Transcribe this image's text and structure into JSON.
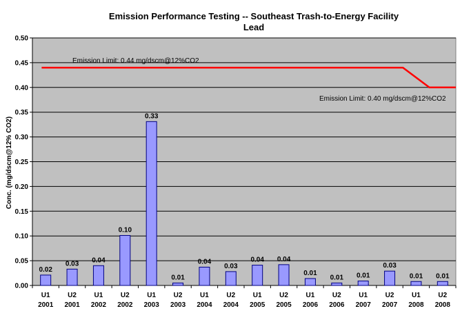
{
  "chart_data": {
    "type": "bar",
    "title": "Emission Performance Testing -- Southeast Trash-to-Energy Facility",
    "subtitle": "Lead",
    "xlabel": "",
    "ylabel": "Conc. (mg/dscm@12% CO2)",
    "ylim": [
      0,
      0.5
    ],
    "yticks": [
      "0.00",
      "0.05",
      "0.10",
      "0.15",
      "0.20",
      "0.25",
      "0.30",
      "0.35",
      "0.40",
      "0.45",
      "0.50"
    ],
    "grid": true,
    "categories": [
      [
        "U1",
        "2001"
      ],
      [
        "U2",
        "2001"
      ],
      [
        "U1",
        "2002"
      ],
      [
        "U2",
        "2002"
      ],
      [
        "U1",
        "2003"
      ],
      [
        "U2",
        "2003"
      ],
      [
        "U1",
        "2004"
      ],
      [
        "U2",
        "2004"
      ],
      [
        "U1",
        "2005"
      ],
      [
        "U2",
        "2005"
      ],
      [
        "U1",
        "2006"
      ],
      [
        "U2",
        "2006"
      ],
      [
        "U1",
        "2007"
      ],
      [
        "U2",
        "2007"
      ],
      [
        "U1",
        "2008"
      ],
      [
        "U2",
        "2008"
      ]
    ],
    "values": [
      0.021,
      0.033,
      0.04,
      0.101,
      0.331,
      0.005,
      0.037,
      0.028,
      0.041,
      0.042,
      0.014,
      0.005,
      0.009,
      0.029,
      0.008,
      0.008
    ],
    "data_labels": [
      "0.02",
      "0.03",
      "0.04",
      "0.10",
      "0.33",
      "0.01",
      "0.04",
      "0.03",
      "0.04",
      "0.04",
      "0.01",
      "0.01",
      "0.01",
      "0.03",
      "0.01",
      "0.01"
    ],
    "limit_line": {
      "points": [
        [
          0,
          0.44
        ],
        [
          13.5,
          0.44
        ],
        [
          14.5,
          0.4
        ],
        [
          15.5,
          0.4
        ]
      ]
    },
    "annotations": [
      {
        "text": "Emission Limit: 0.44 mg/dscm@12%CO2"
      },
      {
        "text": "Emission Limit: 0.40 mg/dscm@12%CO2"
      }
    ],
    "colors": {
      "plot_bg": "#c0c0c0",
      "bar_fill": "#9999ff",
      "bar_stroke": "#000080",
      "limit_line": "#ff0000",
      "grid": "#000000"
    }
  }
}
